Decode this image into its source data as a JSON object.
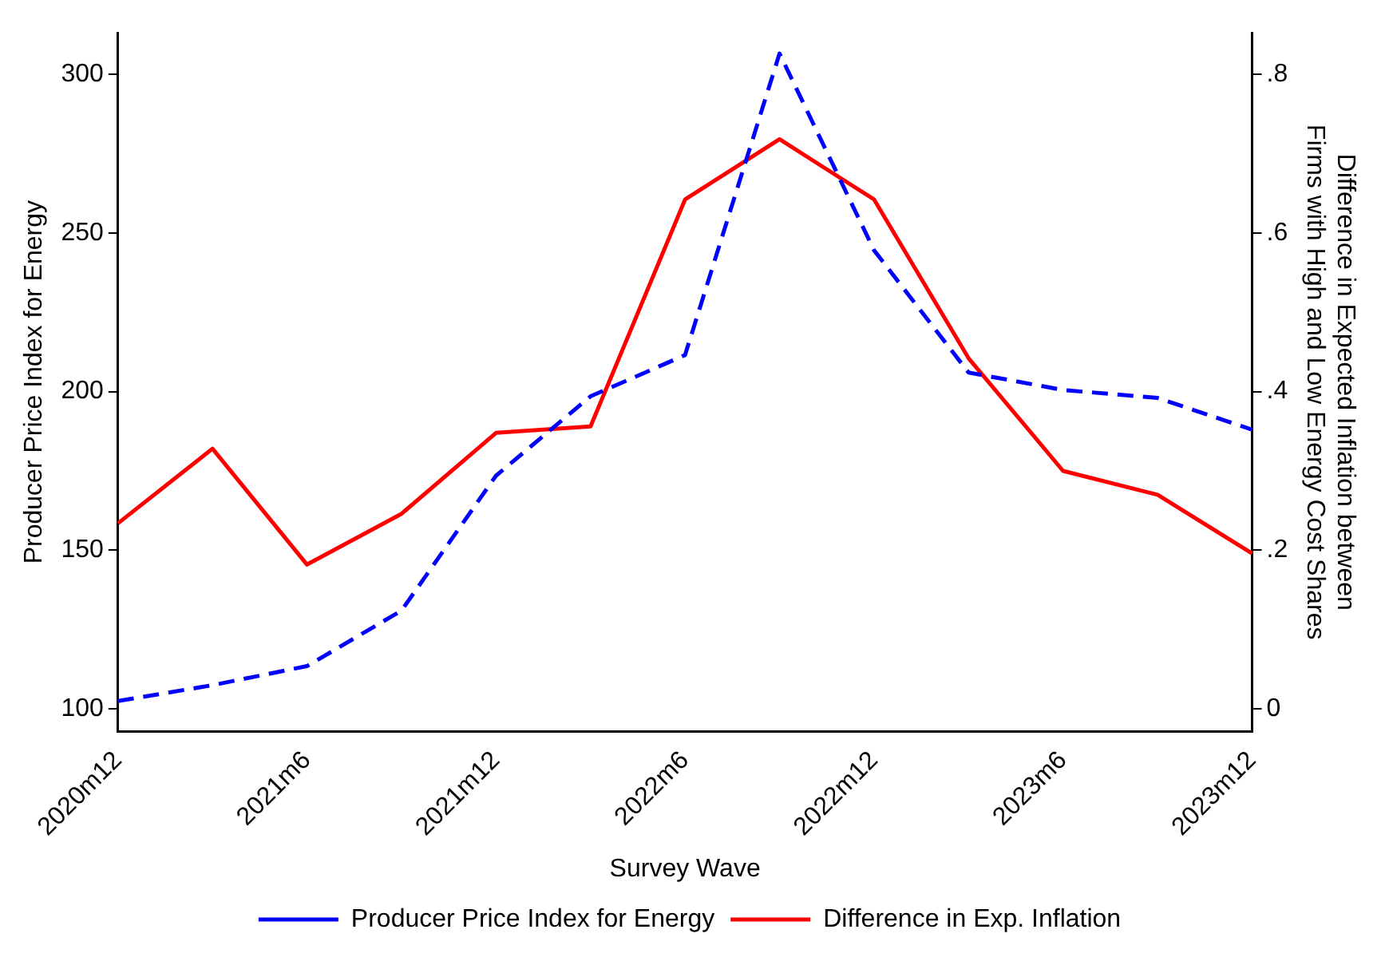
{
  "chart_data": {
    "type": "line",
    "xlabel": "Survey Wave",
    "ylabel": "Producer Price Index for Energy",
    "y2label": "Difference in Expected Inflation between\nFirms with High and Low Energy Cost Shares",
    "categories": [
      "2020m12",
      null,
      "2021m6",
      null,
      "2021m12",
      null,
      "2022m6",
      null,
      "2022m12",
      null,
      "2023m6",
      null,
      "2023m12"
    ],
    "series": [
      {
        "name": "Producer Price Index for Energy",
        "color": "#0000ff",
        "line_style": "dashed",
        "values": [
          102.5,
          107.5,
          113.5,
          131,
          173.5,
          198.5,
          211.5,
          306.5,
          244.5,
          206,
          200.5,
          198,
          188
        ]
      },
      {
        "name": "Difference in Exp. Inflation",
        "color": "#ff0000",
        "line_style": "solid",
        "axis": "y2",
        "values": [
          0.234,
          0.328,
          0.182,
          0.246,
          0.348,
          0.356,
          0.642,
          0.718,
          0.642,
          0.442,
          0.3,
          0.27,
          0.196
        ]
      }
    ],
    "ylim": [
      93,
      313
    ],
    "yticks": [
      100,
      150,
      200,
      250,
      300
    ],
    "y2lim": [
      -0.028,
      0.852
    ],
    "y2ticks": [
      0,
      {
        "value": 0.2,
        "label": ".2"
      },
      {
        "value": 0.4,
        "label": ".4"
      },
      {
        "value": 0.6,
        "label": ".6"
      },
      {
        "value": 0.8,
        "label": ".8"
      }
    ],
    "grid": false,
    "legend": "bottom",
    "marker": "none"
  }
}
